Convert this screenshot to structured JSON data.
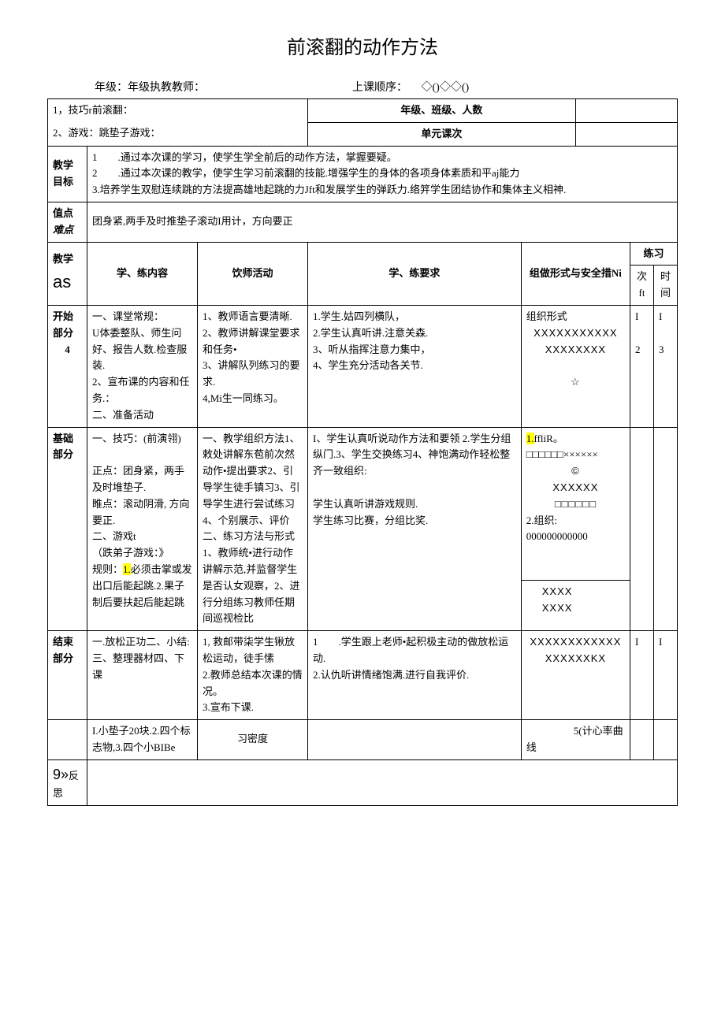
{
  "title": "前滚翻的动作方法",
  "meta": {
    "grade_label": "年级：年级执教教师：",
    "order_label": "上课顺序：",
    "order_marks": "◇()◇◇()",
    "content1": "1，技巧r前滚翻：",
    "content2": "2、游戏：跳垫子游戏：",
    "class_label": "年级、班级、人数",
    "unit_label": "单元课次"
  },
  "objectives": {
    "label": "教学目标",
    "line1": "1　　.通过本次课的学习，使学生学全前后的动作方法，掌握要疑。",
    "line2": "2　　.通过本次课的教学，使学生学习前滚翻的技能.增强学生的身体的各项身体素质和平aj能力",
    "line3": "3.培养学生双慰连续跳的方法提高雄地起跳的力Jft和发展学生的弹跃力.络笄学生团结协作和集体主义相神."
  },
  "keypoint": {
    "label": "值点难点",
    "text": "团身紧,两手及时推垫子滚动I用计，方向要正"
  },
  "headers": {
    "process_label": "教学",
    "process_label2": "as",
    "col_content": "学、练内容",
    "col_teacher": "饮师活动",
    "col_req": "学、练要求",
    "col_org": "组做形式与安全措Ni",
    "col_practice": "练习",
    "col_count": "次ft",
    "col_time": "时间"
  },
  "start": {
    "label": "开始部分",
    "label_sub": "4",
    "content": "一、课堂常规：\nU体委整队、师生问好、报告人数.检查服装.\n2、宣布课的内容和任务.：\n二、准备活动",
    "teacher": "1、教师语言要清晰.\n2、教师讲解课堂要求和任务•\n3、讲解队列练习的要求.\n4,Mi生一同练习。",
    "req": "1.学生.姑四列横队，\n2.学生认真听讲.注意关森.\n3、听从指挥注意力集中，\n4、学生充分活动各关节.",
    "org_label": "组织形式",
    "org_line1": "XXXXXXXXXXX",
    "org_line2": "XXXXXXXX",
    "org_star": "☆",
    "count1": "I",
    "count2": "2",
    "time1": "I",
    "time2": "3"
  },
  "base": {
    "label": "基础部分",
    "content_p1": "一、技巧：(前演翎)\n\n正点：团身紧，两手及时堆垫子.\n睢点：滚动阴滑, 方向要正.\n二、游戏t\n（跌弟子游戏：》\n规则：",
    "content_hl": "1.",
    "content_p2": "必须击掌或发出口后能起跳.2.果子制后要扶起后能起跳",
    "teacher": "一、教学组织方法1、敕处讲解东苞前次然动作•提出要求2、引导学生徒手镇习3、引导学生进行尝试练习\n4、个别展示、评价二、练习方法与形式1、教师统•进行动作讲解示范,并监督学生是否认女观察，2、进行分组练习教师任期间巡视检比",
    "req": "I、学生认真听说动作方法和要领 2.学生分组纵门.3、学生交换练习4、神饱满动作轻松整齐一致组织:\n\n学生认真听讲游戏规则.\n学生练习比赛，分组比奖.",
    "org_hl": "1.",
    "org_p1": "ffliR。□□□□□□××××××",
    "org_circ": "©",
    "org_line2": "XXXXXX",
    "org_line3": "□□□□□□",
    "org_p2": "2.组织:\n000000000000",
    "org_bottom1": "XXXX",
    "org_bottom2": "XXXX"
  },
  "end": {
    "label": "结束部分",
    "content": "一.放松正功二、小结:三、整理器材四、下课",
    "teacher": "1, 救邮带柒学生锹放松运动，徒手愫\n2.教师总结本次课的情况。\n3.宣布下课.",
    "req": "1　　.学生跟上老师•起积极主动的做放松运动.\n2.认仇听讲情绪饱满.进行自我评价.",
    "org_line1": "XXXXXXXXXXXX",
    "org_line2": "XXXXXXKX",
    "count": "I",
    "time": "I"
  },
  "footer": {
    "equipment": "I.小垫子20块.2.四个标志物,3.四个小BIBe",
    "density_label": "习密度",
    "hr_label": "5(计心率曲线",
    "reflect_label": "9»反思"
  }
}
